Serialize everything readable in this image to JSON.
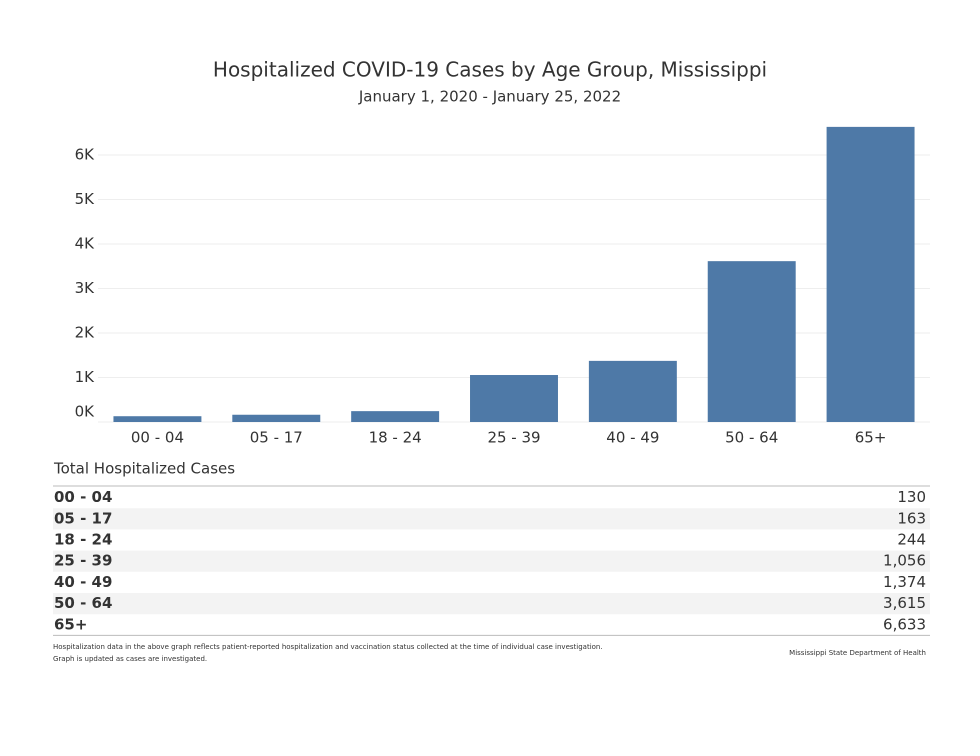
{
  "chart_data": {
    "type": "bar",
    "title": "Hospitalized COVID-19 Cases by Age Group, Mississippi",
    "subtitle": "January 1, 2020 -  January 25, 2022",
    "categories": [
      "00 - 04",
      "05 - 17",
      "18 - 24",
      "25 - 39",
      "40 - 49",
      "50 - 64",
      "65+"
    ],
    "values": [
      130,
      163,
      244,
      1056,
      1374,
      3615,
      6633
    ],
    "color": "#4e79a7",
    "ylim": [
      0,
      6900
    ],
    "yticks": [
      {
        "value": 0,
        "label": "0K"
      },
      {
        "value": 1000,
        "label": "1K"
      },
      {
        "value": 2000,
        "label": "2K"
      },
      {
        "value": 3000,
        "label": "3K"
      },
      {
        "value": 4000,
        "label": "4K"
      },
      {
        "value": 5000,
        "label": "5K"
      },
      {
        "value": 6000,
        "label": "6K"
      }
    ],
    "grid": true
  },
  "table": {
    "title": "Total Hospitalized Cases",
    "rows": [
      [
        "00 - 04",
        "130"
      ],
      [
        "05 - 17",
        "163"
      ],
      [
        "18 - 24",
        "244"
      ],
      [
        "25 - 39",
        "1,056"
      ],
      [
        "40 - 49",
        "1,374"
      ],
      [
        "50 - 64",
        "3,615"
      ],
      [
        "65+",
        "6,633"
      ]
    ]
  },
  "footer": {
    "note": [
      "Hospitalization data in the above graph reflects patient-reported hospitalization and vaccination status collected at the time of individual case investigation.",
      "Graph is updated as cases are investigated."
    ],
    "source": "Mississippi State Department of Health"
  }
}
